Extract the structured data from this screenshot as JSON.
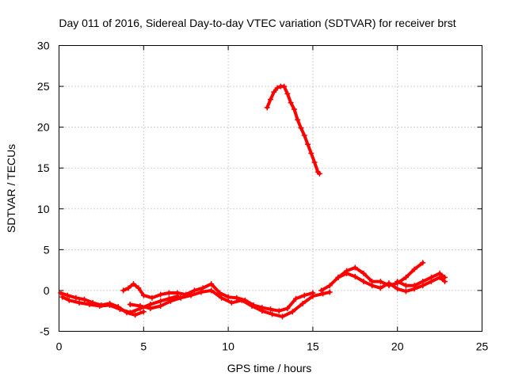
{
  "chart_data": {
    "type": "line",
    "title": "Day 011 of 2016, Sidereal Day-to-day VTEC variation (SDTVAR) for receiver brst",
    "xlabel": "GPS time / hours",
    "ylabel": "SDTVAR / TECUs",
    "xlim": [
      0,
      25
    ],
    "ylim": [
      -5,
      30
    ],
    "xticks": [
      0,
      5,
      10,
      15,
      20,
      25
    ],
    "yticks": [
      -5,
      0,
      5,
      10,
      15,
      20,
      25,
      30
    ],
    "xtick_labels": [
      "0",
      "5",
      "10",
      "15",
      "20",
      "25"
    ],
    "ytick_labels": [
      "-5",
      "0",
      "5",
      "10",
      "15",
      "20",
      "25",
      "30"
    ],
    "grid": true,
    "legend": "none",
    "color": "#ff0000",
    "marker": "plus",
    "series": [
      {
        "x": [
          0.1,
          0.5,
          1.0,
          1.5,
          2.0,
          2.5,
          3.0,
          3.5,
          4.0,
          4.5,
          5.0
        ],
        "y": [
          -0.3,
          -0.6,
          -0.9,
          -1.1,
          -1.5,
          -1.8,
          -1.6,
          -2.0,
          -2.7,
          -3.0,
          -2.6
        ]
      },
      {
        "x": [
          0.2,
          0.6,
          1.2,
          1.8,
          2.4,
          3.0,
          3.6,
          4.2,
          4.8,
          5.4,
          6.0,
          6.5,
          7.0
        ],
        "y": [
          -0.8,
          -1.2,
          -1.5,
          -1.7,
          -1.9,
          -1.8,
          -2.3,
          -2.7,
          -2.2,
          -1.7,
          -1.3,
          -1.0,
          -0.7
        ]
      },
      {
        "x": [
          3.8,
          4.1,
          4.4,
          4.7,
          5.0,
          5.5,
          6.0,
          6.5,
          7.0,
          7.5,
          8.0,
          8.5,
          9.0,
          9.5,
          10.0,
          10.5,
          11.0,
          11.5,
          12.0,
          12.5,
          13.0,
          13.5,
          14.0,
          14.5,
          15.0
        ],
        "y": [
          0.0,
          0.3,
          0.8,
          0.3,
          -0.6,
          -0.9,
          -0.5,
          -0.3,
          -0.3,
          -0.5,
          0.0,
          0.3,
          0.8,
          -0.3,
          -0.8,
          -0.9,
          -1.2,
          -1.8,
          -2.1,
          -2.3,
          -2.5,
          -2.2,
          -1.0,
          -0.6,
          -0.3
        ]
      },
      {
        "x": [
          4.2,
          4.8,
          5.4,
          6.0,
          6.6,
          7.2,
          7.8,
          8.4,
          9.0,
          9.6,
          10.2,
          10.8,
          11.4,
          12.0,
          12.6,
          13.2,
          13.8,
          14.4,
          15.0,
          15.6,
          16.0
        ],
        "y": [
          -1.7,
          -1.9,
          -2.2,
          -1.9,
          -1.3,
          -0.9,
          -0.6,
          -0.2,
          0.0,
          -0.9,
          -1.5,
          -1.2,
          -1.9,
          -2.5,
          -2.9,
          -3.2,
          -2.6,
          -1.6,
          -0.7,
          -0.4,
          -0.2
        ]
      },
      {
        "x": [
          15.5,
          16.0,
          16.5,
          17.0,
          17.5,
          18.0,
          18.5,
          19.0,
          19.5,
          20.0,
          20.5,
          21.0,
          21.5
        ],
        "y": [
          0.0,
          0.6,
          1.6,
          2.4,
          2.8,
          2.1,
          1.1,
          1.1,
          0.6,
          0.9,
          1.6,
          2.6,
          3.4
        ]
      },
      {
        "x": [
          16.5,
          17.0,
          17.5,
          18.0,
          18.5,
          19.0,
          19.5,
          20.0,
          20.5,
          21.0,
          21.5,
          22.0,
          22.5,
          22.8
        ],
        "y": [
          1.6,
          2.1,
          1.7,
          1.1,
          0.6,
          0.3,
          0.9,
          0.2,
          -0.1,
          0.2,
          0.6,
          1.1,
          1.6,
          1.1
        ]
      },
      {
        "x": [
          20.0,
          20.5,
          21.0,
          21.5,
          22.0,
          22.5,
          22.8
        ],
        "y": [
          1.1,
          0.6,
          0.6,
          1.1,
          1.6,
          2.1,
          1.6
        ]
      },
      {
        "x": [
          12.3,
          12.5,
          12.7,
          12.9,
          13.1,
          13.3,
          13.5,
          13.7,
          13.9,
          14.1,
          14.3,
          14.5,
          14.7,
          14.9,
          15.1,
          15.3,
          15.4
        ],
        "y": [
          22.4,
          23.4,
          24.3,
          24.8,
          25.0,
          25.0,
          24.1,
          23.0,
          22.2,
          20.9,
          19.9,
          19.0,
          17.9,
          16.8,
          15.7,
          14.5,
          14.3
        ]
      }
    ]
  }
}
